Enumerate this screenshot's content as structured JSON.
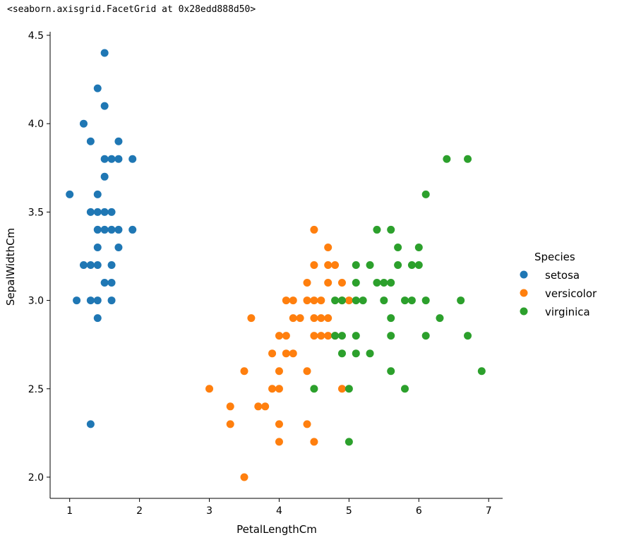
{
  "output_text": "<seaborn.axisgrid.FacetGrid at 0x28edd888d50>",
  "chart_data": {
    "type": "scatter",
    "xlabel": "PetalLengthCm",
    "ylabel": "SepalWidthCm",
    "xlim": [
      0.72,
      7.2
    ],
    "ylim": [
      1.88,
      4.52
    ],
    "xticks": [
      1,
      2,
      3,
      4,
      5,
      6,
      7
    ],
    "yticks": [
      2.0,
      2.5,
      3.0,
      3.5,
      4.0,
      4.5
    ],
    "grid": false,
    "legend": {
      "title": "Species",
      "placement": "right-outside"
    },
    "series": [
      {
        "name": "setosa",
        "color": "#1f77b4",
        "points": [
          [
            1.5,
            4.4
          ],
          [
            1.4,
            4.2
          ],
          [
            1.5,
            4.1
          ],
          [
            1.2,
            4.0
          ],
          [
            1.3,
            3.9
          ],
          [
            1.7,
            3.9
          ],
          [
            1.5,
            3.8
          ],
          [
            1.6,
            3.8
          ],
          [
            1.7,
            3.8
          ],
          [
            1.9,
            3.8
          ],
          [
            1.5,
            3.7
          ],
          [
            1.0,
            3.6
          ],
          [
            1.4,
            3.6
          ],
          [
            1.3,
            3.5
          ],
          [
            1.4,
            3.5
          ],
          [
            1.5,
            3.5
          ],
          [
            1.6,
            3.5
          ],
          [
            1.4,
            3.4
          ],
          [
            1.5,
            3.4
          ],
          [
            1.6,
            3.4
          ],
          [
            1.7,
            3.4
          ],
          [
            1.9,
            3.4
          ],
          [
            1.4,
            3.3
          ],
          [
            1.7,
            3.3
          ],
          [
            1.2,
            3.2
          ],
          [
            1.3,
            3.2
          ],
          [
            1.4,
            3.2
          ],
          [
            1.6,
            3.2
          ],
          [
            1.5,
            3.1
          ],
          [
            1.6,
            3.1
          ],
          [
            1.1,
            3.0
          ],
          [
            1.3,
            3.0
          ],
          [
            1.4,
            3.0
          ],
          [
            1.6,
            3.0
          ],
          [
            1.4,
            2.9
          ],
          [
            1.3,
            2.3
          ]
        ]
      },
      {
        "name": "versicolor",
        "color": "#ff7f0e",
        "points": [
          [
            4.5,
            3.4
          ],
          [
            4.7,
            3.3
          ],
          [
            4.5,
            3.2
          ],
          [
            4.7,
            3.2
          ],
          [
            4.8,
            3.2
          ],
          [
            4.4,
            3.1
          ],
          [
            4.7,
            3.1
          ],
          [
            4.9,
            3.1
          ],
          [
            4.1,
            3.0
          ],
          [
            4.2,
            3.0
          ],
          [
            4.4,
            3.0
          ],
          [
            4.5,
            3.0
          ],
          [
            4.6,
            3.0
          ],
          [
            4.9,
            3.0
          ],
          [
            5.0,
            3.0
          ],
          [
            3.6,
            2.9
          ],
          [
            4.2,
            2.9
          ],
          [
            4.3,
            2.9
          ],
          [
            4.5,
            2.9
          ],
          [
            4.6,
            2.9
          ],
          [
            4.7,
            2.9
          ],
          [
            4.0,
            2.8
          ],
          [
            4.1,
            2.8
          ],
          [
            4.5,
            2.8
          ],
          [
            4.6,
            2.8
          ],
          [
            4.7,
            2.8
          ],
          [
            4.8,
            2.8
          ],
          [
            3.9,
            2.7
          ],
          [
            4.1,
            2.7
          ],
          [
            4.2,
            2.7
          ],
          [
            3.5,
            2.6
          ],
          [
            4.0,
            2.6
          ],
          [
            4.4,
            2.6
          ],
          [
            3.0,
            2.5
          ],
          [
            3.9,
            2.5
          ],
          [
            4.0,
            2.5
          ],
          [
            4.9,
            2.5
          ],
          [
            3.3,
            2.4
          ],
          [
            3.7,
            2.4
          ],
          [
            3.8,
            2.4
          ],
          [
            3.3,
            2.3
          ],
          [
            4.0,
            2.3
          ],
          [
            4.4,
            2.3
          ],
          [
            4.0,
            2.2
          ],
          [
            4.5,
            2.2
          ],
          [
            3.5,
            2.0
          ]
        ]
      },
      {
        "name": "virginica",
        "color": "#2ca02c",
        "points": [
          [
            6.4,
            3.8
          ],
          [
            6.7,
            3.8
          ],
          [
            6.1,
            3.6
          ],
          [
            5.4,
            3.4
          ],
          [
            5.6,
            3.4
          ],
          [
            5.7,
            3.3
          ],
          [
            6.0,
            3.3
          ],
          [
            5.1,
            3.2
          ],
          [
            5.3,
            3.2
          ],
          [
            5.7,
            3.2
          ],
          [
            5.9,
            3.2
          ],
          [
            6.0,
            3.2
          ],
          [
            5.1,
            3.1
          ],
          [
            5.4,
            3.1
          ],
          [
            5.5,
            3.1
          ],
          [
            5.6,
            3.1
          ],
          [
            4.8,
            3.0
          ],
          [
            4.9,
            3.0
          ],
          [
            5.1,
            3.0
          ],
          [
            5.2,
            3.0
          ],
          [
            5.5,
            3.0
          ],
          [
            5.8,
            3.0
          ],
          [
            5.9,
            3.0
          ],
          [
            6.1,
            3.0
          ],
          [
            6.6,
            3.0
          ],
          [
            5.6,
            2.9
          ],
          [
            6.3,
            2.9
          ],
          [
            4.8,
            2.8
          ],
          [
            4.9,
            2.8
          ],
          [
            5.1,
            2.8
          ],
          [
            5.6,
            2.8
          ],
          [
            6.1,
            2.8
          ],
          [
            6.7,
            2.8
          ],
          [
            4.9,
            2.7
          ],
          [
            5.1,
            2.7
          ],
          [
            5.3,
            2.7
          ],
          [
            5.6,
            2.6
          ],
          [
            6.9,
            2.6
          ],
          [
            4.5,
            2.5
          ],
          [
            5.0,
            2.5
          ],
          [
            5.8,
            2.5
          ],
          [
            5.0,
            2.2
          ]
        ]
      }
    ]
  }
}
